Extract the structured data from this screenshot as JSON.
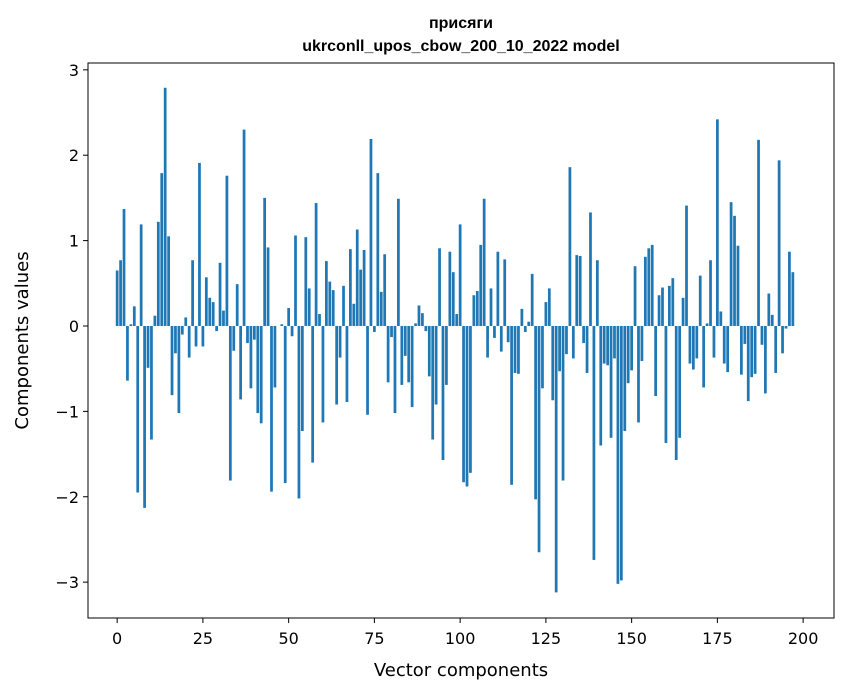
{
  "chart_data": {
    "type": "bar",
    "title": "присяги",
    "subtitle": "ukrconll_upos_cbow_200_10_2022 model",
    "xlabel": "Vector components",
    "ylabel": "Components values",
    "xlim": [
      -8.5,
      209
    ],
    "ylim": [
      -3.42,
      3.08
    ],
    "xticks": [
      0,
      25,
      50,
      75,
      100,
      125,
      150,
      175,
      200
    ],
    "yticks": [
      -3,
      -2,
      -1,
      0,
      1,
      2,
      3
    ],
    "grid": false,
    "legend": "none",
    "color": "#1f77b4",
    "values": [
      0.65,
      0.77,
      1.37,
      -0.64,
      0.02,
      0.23,
      -1.95,
      1.19,
      -2.13,
      -0.49,
      -1.33,
      0.12,
      1.22,
      1.79,
      2.79,
      1.05,
      -0.81,
      -0.32,
      -1.02,
      -0.1,
      0.1,
      -0.37,
      0.77,
      -0.24,
      1.91,
      -0.24,
      0.57,
      0.33,
      0.28,
      -0.06,
      0.74,
      0.18,
      1.76,
      -1.81,
      -0.29,
      0.49,
      -0.86,
      2.3,
      -0.2,
      -0.73,
      -0.16,
      -1.02,
      -1.14,
      1.5,
      0.92,
      -1.94,
      -0.72,
      0.0,
      0.02,
      -1.84,
      0.21,
      -0.12,
      1.06,
      -2.02,
      -1.23,
      1.04,
      0.44,
      -1.6,
      1.44,
      0.14,
      -1.13,
      0.76,
      0.52,
      0.42,
      -0.92,
      -0.37,
      0.47,
      -0.89,
      0.9,
      0.26,
      1.13,
      0.66,
      0.89,
      -1.04,
      2.19,
      -0.07,
      1.79,
      0.4,
      0.84,
      -0.66,
      -0.13,
      -1.02,
      1.49,
      -0.69,
      -0.35,
      -0.66,
      -0.95,
      0.03,
      0.24,
      0.15,
      -0.06,
      -0.59,
      -1.33,
      -0.92,
      0.91,
      -1.57,
      -0.69,
      0.87,
      0.63,
      0.14,
      1.19,
      -1.83,
      -1.88,
      -1.72,
      0.36,
      0.41,
      0.95,
      1.49,
      -0.37,
      0.44,
      -0.14,
      0.87,
      -0.3,
      0.78,
      -0.19,
      -1.86,
      -0.55,
      -0.56,
      0.2,
      -0.07,
      0.05,
      0.61,
      -2.03,
      -2.65,
      -0.73,
      0.28,
      0.44,
      -0.87,
      -3.12,
      -0.53,
      -1.81,
      -0.33,
      1.86,
      -0.38,
      0.83,
      0.82,
      -0.2,
      -0.55,
      1.33,
      -2.74,
      0.77,
      -1.4,
      -0.44,
      -0.46,
      -1.31,
      -0.38,
      -3.02,
      -2.98,
      -1.23,
      -0.67,
      -0.52,
      0.7,
      -1.13,
      -0.41,
      0.81,
      0.91,
      0.95,
      -0.82,
      0.36,
      0.45,
      -1.37,
      0.47,
      0.56,
      -1.57,
      -1.31,
      0.33,
      1.41,
      -0.44,
      -0.51,
      -0.38,
      0.59,
      -0.72,
      0.03,
      0.77,
      -0.37,
      2.42,
      0.17,
      -0.44,
      -0.54,
      1.45,
      1.29,
      0.94,
      -0.57,
      -0.21,
      -0.88,
      -0.6,
      -0.56,
      2.18,
      -0.22,
      -0.79,
      0.38,
      0.13,
      -0.55,
      1.94,
      -0.32,
      -0.03,
      0.87,
      0.63
    ]
  }
}
